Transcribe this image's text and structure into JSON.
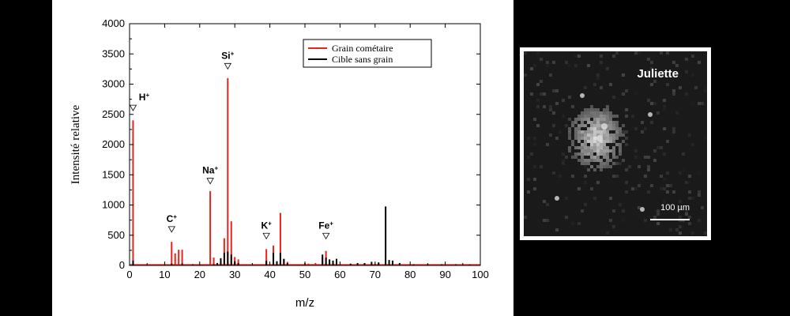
{
  "chart_data": {
    "type": "bar",
    "xlabel": "m/z",
    "ylabel": "Intensité relative",
    "xlim": [
      0,
      100
    ],
    "ylim": [
      0,
      4000
    ],
    "x_ticks": [
      0,
      10,
      20,
      30,
      40,
      50,
      60,
      70,
      80,
      90,
      100
    ],
    "y_ticks": [
      0,
      500,
      1000,
      1500,
      2000,
      2500,
      3000,
      3500,
      4000
    ],
    "legend_position": "top-right",
    "series": [
      {
        "name": "Grain cométaire",
        "color": "#e8231a",
        "points": [
          [
            1,
            2400
          ],
          [
            12,
            390
          ],
          [
            13,
            200
          ],
          [
            14,
            260
          ],
          [
            15,
            260
          ],
          [
            23,
            1230
          ],
          [
            24,
            130
          ],
          [
            26,
            60
          ],
          [
            27,
            450
          ],
          [
            28,
            3100
          ],
          [
            29,
            730
          ],
          [
            30,
            140
          ],
          [
            31,
            100
          ],
          [
            39,
            270
          ],
          [
            41,
            330
          ],
          [
            43,
            870
          ],
          [
            44,
            100
          ],
          [
            45,
            60
          ],
          [
            50,
            40
          ],
          [
            51,
            30
          ],
          [
            53,
            40
          ],
          [
            55,
            130
          ],
          [
            56,
            240
          ],
          [
            57,
            80
          ],
          [
            58,
            40
          ],
          [
            60,
            20
          ],
          [
            65,
            20
          ],
          [
            70,
            30
          ],
          [
            73,
            30
          ]
        ]
      },
      {
        "name": "Cible sans grain",
        "color": "#000000",
        "points": [
          [
            1,
            80
          ],
          [
            12,
            30
          ],
          [
            15,
            20
          ],
          [
            18,
            20
          ],
          [
            24,
            20
          ],
          [
            25,
            40
          ],
          [
            26,
            120
          ],
          [
            27,
            210
          ],
          [
            28,
            230
          ],
          [
            29,
            180
          ],
          [
            30,
            70
          ],
          [
            31,
            40
          ],
          [
            39,
            80
          ],
          [
            41,
            210
          ],
          [
            42,
            70
          ],
          [
            43,
            210
          ],
          [
            44,
            110
          ],
          [
            45,
            40
          ],
          [
            55,
            180
          ],
          [
            56,
            130
          ],
          [
            57,
            100
          ],
          [
            58,
            80
          ],
          [
            59,
            110
          ],
          [
            63,
            30
          ],
          [
            65,
            40
          ],
          [
            67,
            40
          ],
          [
            69,
            60
          ],
          [
            71,
            50
          ],
          [
            73,
            975
          ],
          [
            74,
            90
          ],
          [
            75,
            80
          ],
          [
            77,
            40
          ],
          [
            81,
            20
          ],
          [
            85,
            20
          ],
          [
            89,
            20
          ],
          [
            93,
            20
          ],
          [
            97,
            15
          ]
        ]
      }
    ],
    "annotations": [
      {
        "element": "H",
        "charge": "+",
        "x": 1,
        "y": 2600
      },
      {
        "element": "C",
        "charge": "+",
        "x": 12,
        "y": 590
      },
      {
        "element": "Na",
        "charge": "+",
        "x": 23,
        "y": 1390
      },
      {
        "element": "Si",
        "charge": "+",
        "x": 28,
        "y": 3290
      },
      {
        "element": "K",
        "charge": "+",
        "x": 39,
        "y": 480
      },
      {
        "element": "Fe",
        "charge": "+",
        "x": 56,
        "y": 480
      }
    ]
  },
  "micrograph": {
    "label": "Juliette",
    "scale_label": "100 µm"
  }
}
